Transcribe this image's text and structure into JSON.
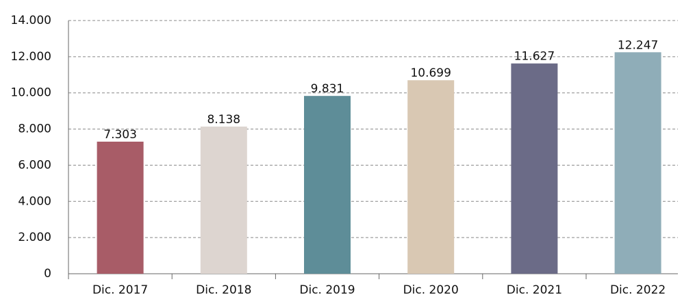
{
  "chart_data": {
    "type": "bar",
    "categories": [
      "Dic. 2017",
      "Dic. 2018",
      "Dic. 2019",
      "Dic. 2020",
      "Dic. 2021",
      "Dic. 2022"
    ],
    "values": [
      7303,
      8138,
      9831,
      10699,
      11627,
      12247
    ],
    "value_labels": [
      "7.303",
      "8.138",
      "9.831",
      "10.699",
      "11.627",
      "12.247"
    ],
    "colors": [
      "#a85c67",
      "#ddd5d0",
      "#5e8d98",
      "#d9c8b3",
      "#6b6b87",
      "#8fadb8"
    ],
    "ylim": [
      0,
      14000
    ],
    "yticks": [
      0,
      {
        "value": 2000,
        "label": "2.000"
      },
      {
        "value": 4000,
        "label": "4.000"
      },
      {
        "value": 6000,
        "label": "6.000"
      },
      {
        "value": 8000,
        "label": "8.000"
      },
      {
        "value": 10000,
        "label": "10.000"
      },
      {
        "value": 12000,
        "label": "12.000"
      },
      {
        "value": 14000,
        "label": "14.000"
      }
    ],
    "grid": true
  }
}
